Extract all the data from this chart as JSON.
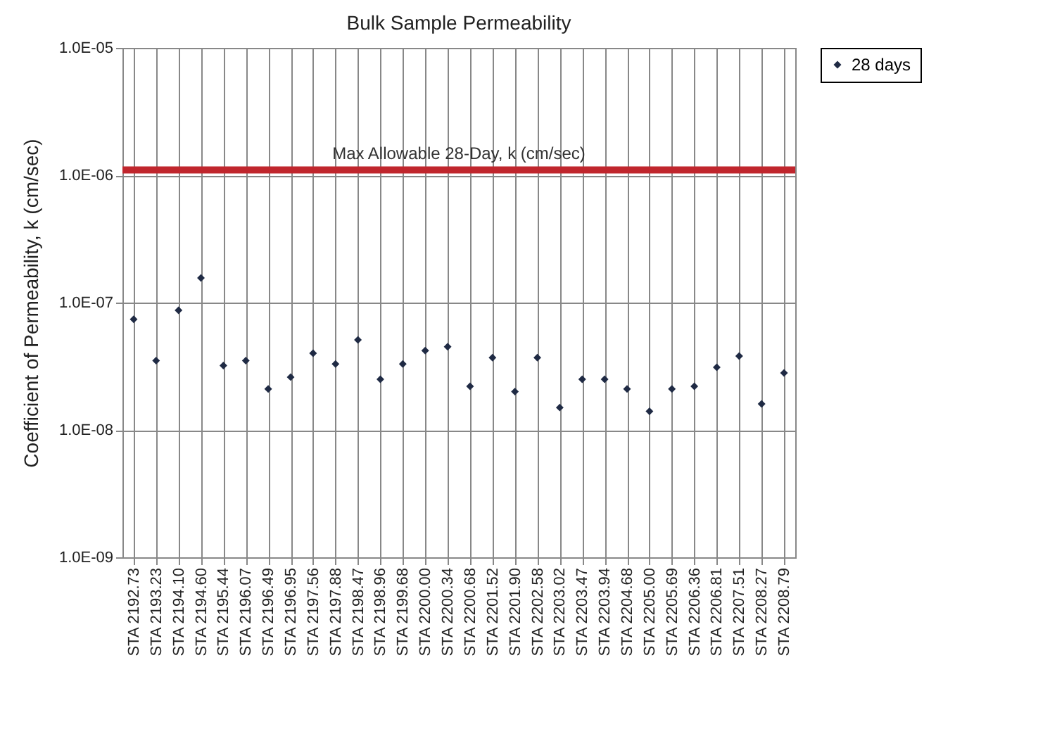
{
  "chart_data": {
    "type": "scatter",
    "title": "Bulk Sample Permeability",
    "ylabel": "Coefficient of Permeability, k (cm/sec)",
    "categories": [
      "STA 2192.73",
      "STA 2193.23",
      "STA 2194.10",
      "STA 2194.60",
      "STA 2195.44",
      "STA 2196.07",
      "STA 2196.49",
      "STA 2196.95",
      "STA 2197.56",
      "STA 2197.88",
      "STA 2198.47",
      "STA 2198.96",
      "STA 2199.68",
      "STA 2200.00",
      "STA 2200.34",
      "STA 2200.68",
      "STA 2201.52",
      "STA 2201.90",
      "STA 2202.58",
      "STA 2203.02",
      "STA 2203.47",
      "STA 2203.94",
      "STA 2204.68",
      "STA 2205.00",
      "STA 2205.69",
      "STA 2206.36",
      "STA 2206.81",
      "STA 2207.51",
      "STA 2208.27",
      "STA 2208.79"
    ],
    "series": [
      {
        "name": "28 days",
        "color": "#1f2a44",
        "values": [
          7.4e-08,
          3.5e-08,
          8.7e-08,
          1.56e-07,
          3.2e-08,
          3.5e-08,
          2.1e-08,
          2.6e-08,
          4e-08,
          3.3e-08,
          5.1e-08,
          2.5e-08,
          3.3e-08,
          4.2e-08,
          4.5e-08,
          2.2e-08,
          3.7e-08,
          2e-08,
          3.7e-08,
          1.5e-08,
          2.5e-08,
          2.5e-08,
          2.1e-08,
          1.4e-08,
          2.1e-08,
          2.2e-08,
          3.1e-08,
          3.8e-08,
          1.6e-08,
          2.8e-08
        ]
      }
    ],
    "log": "y",
    "ylim": [
      1e-09,
      1e-05
    ],
    "yticks": [
      {
        "value": 1e-09,
        "label": "1.0E-09"
      },
      {
        "value": 1e-08,
        "label": "1.0E-08"
      },
      {
        "value": 1e-07,
        "label": "1.0E-07"
      },
      {
        "value": 1e-06,
        "label": "1.0E-06"
      },
      {
        "value": 1e-05,
        "label": "1.0E-05"
      }
    ],
    "ref_lines": [
      {
        "axis": "y",
        "value": 1.1e-06,
        "label": "Max Allowable 28-Day, k (cm/sec)",
        "color": "#c0262d"
      }
    ],
    "grid": true,
    "legend": "right",
    "marker": "diamond"
  }
}
